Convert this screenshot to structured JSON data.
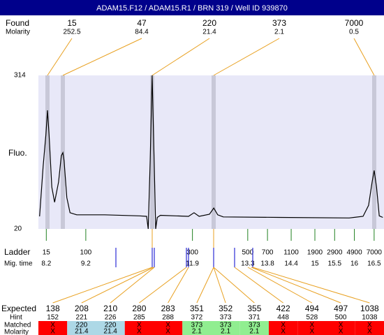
{
  "title": "ADAM15.F12 / ADAM15.R1 / BRN 319 / Well ID 939870",
  "found": {
    "label": "Found",
    "molarity_label": "Molarity",
    "sizes": [
      15,
      47,
      220,
      373,
      7000
    ],
    "molarity": [
      252.5,
      84.4,
      21.4,
      2.1,
      0.5
    ]
  },
  "chart_data": {
    "type": "line",
    "y_label": "Fluo.",
    "x": [
      8.03,
      8.12,
      8.19,
      8.23,
      8.27,
      8.34,
      8.41,
      8.51,
      8.58,
      8.62,
      8.65,
      8.72,
      8.8,
      8.97,
      9.68,
      10.56,
      10.74,
      10.78,
      10.83,
      10.88,
      10.93,
      10.97,
      11.01,
      11.09,
      11.8,
      11.94,
      12.07,
      12.33,
      12.44,
      12.54,
      12.68,
      14.1,
      15.87,
      16.22,
      16.36,
      16.45,
      16.5,
      16.56,
      16.63,
      16.72
    ],
    "values": [
      44,
      140,
      200,
      247,
      200,
      100,
      71,
      110,
      160,
      166,
      150,
      80,
      51,
      47,
      47,
      45,
      44,
      20,
      150,
      314,
      150,
      20,
      42,
      46,
      44,
      51,
      44,
      48,
      60,
      47,
      43,
      42,
      41,
      44,
      65,
      110,
      132,
      100,
      45,
      42
    ],
    "xlim": [
      8.0,
      16.75
    ],
    "ylim": [
      20,
      314
    ],
    "yticks": [
      20,
      314
    ],
    "color": "#000000",
    "background": "#e8e8f8"
  },
  "ladder": {
    "label": "Ladder",
    "time_label": "Mig. time",
    "sizes": [
      15,
      100,
      300,
      500,
      700,
      1100,
      1900,
      2900,
      4900,
      7000
    ],
    "times": [
      8.2,
      9.2,
      11.9,
      13.3,
      13.8,
      14.4,
      15,
      15.5,
      16,
      16.5
    ]
  },
  "expected": {
    "label": "Expected",
    "hint_label": "Hint",
    "matched_label": "Matched",
    "molarity_label": "Molarity",
    "expected": [
      138,
      208,
      210,
      280,
      283,
      351,
      352,
      355,
      422,
      494,
      497,
      1038
    ],
    "hint": [
      152,
      221,
      226,
      285,
      288,
      372,
      373,
      371,
      448,
      528,
      500,
      1038
    ],
    "matched": [
      "X",
      220,
      220,
      "X",
      "X",
      373,
      373,
      373,
      "X",
      "X",
      "X",
      "X"
    ],
    "molarity": [
      "X",
      21.4,
      21.4,
      "X",
      "X",
      2.1,
      2.1,
      2.1,
      "X",
      "X",
      "X",
      "X"
    ],
    "colors": [
      "#ff0000",
      "#add8e6",
      "#add8e6",
      "#ff0000",
      "#ff0000",
      "#90ee90",
      "#90ee90",
      "#90ee90",
      "#ff0000",
      "#ff0000",
      "#ff0000",
      "#ff0000"
    ]
  }
}
